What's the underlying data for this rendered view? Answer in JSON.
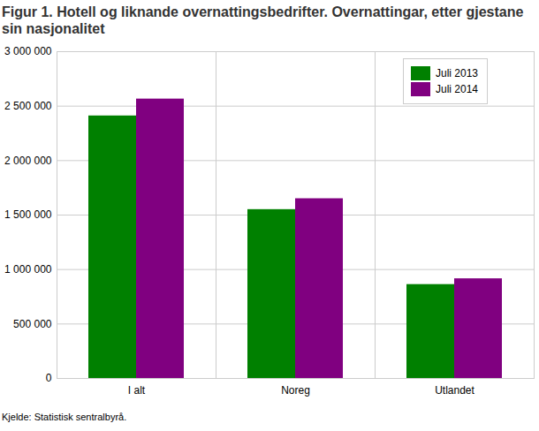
{
  "chart_data": {
    "type": "bar",
    "title": "Figur 1. Hotell og liknande overnattingsbedrifter. Overnattingar, etter gjestane sin nasjonalitet",
    "caption": "Kjelde: Statistisk sentralbyrå.",
    "categories": [
      "I alt",
      "Noreg",
      "Utlandet"
    ],
    "series": [
      {
        "name": "Juli 2013",
        "color": "#008000",
        "values": [
          2410000,
          1550000,
          862000
        ]
      },
      {
        "name": "Juli 2014",
        "color": "#800080",
        "values": [
          2565000,
          1650000,
          915000
        ]
      }
    ],
    "ylim": [
      0,
      3000000
    ],
    "yticks": [
      0,
      {
        "value": 500000,
        "label": "500 000"
      },
      {
        "value": 1000000,
        "label": "1 000 000"
      },
      {
        "value": 1500000,
        "label": "1 500 000"
      },
      {
        "value": 2000000,
        "label": "2 000 000"
      },
      {
        "value": 2500000,
        "label": "2 500 000"
      },
      {
        "value": 3000000,
        "label": "3 000 000"
      }
    ],
    "grid": true,
    "legend": "top-right"
  }
}
